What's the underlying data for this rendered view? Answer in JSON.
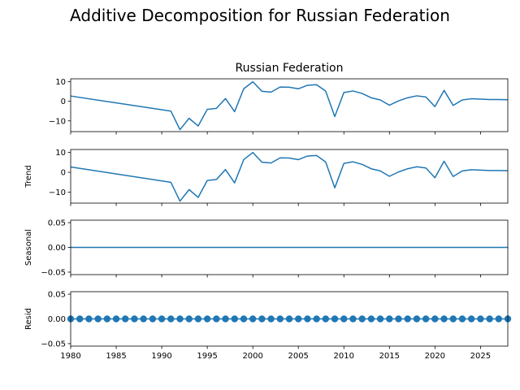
{
  "suptitle": "Additive Decomposition for Russian Federation",
  "chart_data": {
    "type": "line",
    "line_color": "#1f77b4",
    "x_range": [
      1980,
      2028
    ],
    "x_ticks": [
      1980,
      1985,
      1990,
      1995,
      2000,
      2005,
      2010,
      2015,
      2020,
      2025
    ],
    "x": [
      1980,
      1991,
      1992,
      1993,
      1994,
      1995,
      1996,
      1997,
      1998,
      1999,
      2000,
      2001,
      2002,
      2003,
      2004,
      2005,
      2006,
      2007,
      2008,
      2009,
      2010,
      2011,
      2012,
      2013,
      2014,
      2015,
      2016,
      2017,
      2018,
      2019,
      2020,
      2021,
      2022,
      2023,
      2024,
      2025,
      2026,
      2027,
      2028
    ],
    "panels": [
      {
        "title": "Russian Federation",
        "ylabel": "",
        "ylim": [
          -15.5,
          11.5
        ],
        "yticks": [
          10,
          0,
          -10
        ],
        "ytick_labels": [
          "10",
          "0",
          "−10"
        ],
        "markers": false,
        "values": [
          2.7,
          -5.0,
          -14.5,
          -8.7,
          -12.6,
          -4.1,
          -3.6,
          1.4,
          -5.3,
          6.4,
          10.0,
          5.1,
          4.7,
          7.3,
          7.2,
          6.4,
          8.2,
          8.5,
          5.2,
          -7.8,
          4.5,
          5.3,
          4.0,
          1.8,
          0.7,
          -2.0,
          0.2,
          1.8,
          2.8,
          2.2,
          -2.7,
          5.6,
          -2.1,
          0.7,
          1.3,
          1.1,
          0.9,
          0.9,
          0.8
        ]
      },
      {
        "title": "",
        "ylabel": "Trend",
        "ylim": [
          -15.5,
          11.5
        ],
        "yticks": [
          10,
          0,
          -10
        ],
        "ytick_labels": [
          "10",
          "0",
          "−10"
        ],
        "markers": false,
        "values": [
          2.7,
          -5.0,
          -14.5,
          -8.7,
          -12.6,
          -4.1,
          -3.6,
          1.4,
          -5.3,
          6.4,
          10.0,
          5.1,
          4.7,
          7.3,
          7.2,
          6.4,
          8.2,
          8.5,
          5.2,
          -7.8,
          4.5,
          5.3,
          4.0,
          1.8,
          0.7,
          -2.0,
          0.2,
          1.8,
          2.8,
          2.2,
          -2.7,
          5.6,
          -2.1,
          0.7,
          1.3,
          1.1,
          0.9,
          0.9,
          0.8
        ]
      },
      {
        "title": "",
        "ylabel": "Seasonal",
        "ylim": [
          -0.055,
          0.055
        ],
        "yticks": [
          0.05,
          0.0,
          -0.05
        ],
        "ytick_labels": [
          "0.05",
          "0.00",
          "−0.05"
        ],
        "markers": false,
        "values": [
          0,
          0,
          0,
          0,
          0,
          0,
          0,
          0,
          0,
          0,
          0,
          0,
          0,
          0,
          0,
          0,
          0,
          0,
          0,
          0,
          0,
          0,
          0,
          0,
          0,
          0,
          0,
          0,
          0,
          0,
          0,
          0,
          0,
          0,
          0,
          0,
          0,
          0,
          0
        ]
      },
      {
        "title": "",
        "ylabel": "Resid",
        "ylim": [
          -0.055,
          0.055
        ],
        "yticks": [
          0.05,
          0.0,
          -0.05
        ],
        "ytick_labels": [
          "0.05",
          "0.00",
          "−0.05"
        ],
        "markers": true,
        "marker_x": [
          1980,
          1981,
          1982,
          1983,
          1984,
          1985,
          1986,
          1987,
          1988,
          1989,
          1990,
          1991,
          1992,
          1993,
          1994,
          1995,
          1996,
          1997,
          1998,
          1999,
          2000,
          2001,
          2002,
          2003,
          2004,
          2005,
          2006,
          2007,
          2008,
          2009,
          2010,
          2011,
          2012,
          2013,
          2014,
          2015,
          2016,
          2017,
          2018,
          2019,
          2020,
          2021,
          2022,
          2023,
          2024,
          2025,
          2026,
          2027,
          2028
        ],
        "marker_value": 0,
        "values": [
          0,
          0,
          0,
          0,
          0,
          0,
          0,
          0,
          0,
          0,
          0,
          0,
          0,
          0,
          0,
          0,
          0,
          0,
          0,
          0,
          0,
          0,
          0,
          0,
          0,
          0,
          0,
          0,
          0,
          0,
          0,
          0,
          0,
          0,
          0,
          0,
          0,
          0,
          0
        ]
      }
    ]
  }
}
